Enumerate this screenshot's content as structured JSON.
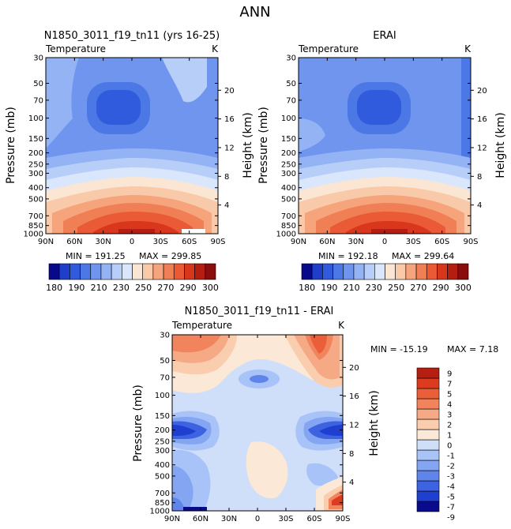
{
  "page_title": "ANN",
  "colors": {
    "t_scale": [
      "#08088a",
      "#1e3ecb",
      "#2f5bdc",
      "#4c78e6",
      "#6f95ef",
      "#93b3f5",
      "#b7cff8",
      "#d9e6fb",
      "#fbe6d4",
      "#f9caa9",
      "#f6a47c",
      "#f17f56",
      "#ea5a34",
      "#d9361e",
      "#b51d12",
      "#8a0c0c"
    ],
    "d_scale": [
      "#0a0a8c",
      "#1e3fcf",
      "#3e63e0",
      "#5f84ea",
      "#83a5f2",
      "#a8c3f7",
      "#cfdffa",
      "#fbe8d6",
      "#f9cdae",
      "#f6a985",
      "#f1845c",
      "#ea5f38",
      "#dc3b20",
      "#b71e12"
    ]
  },
  "chart_data": [
    {
      "type": "contour",
      "id": "model",
      "title": "N1850_3011_f19_tn11 (yrs 16-25)",
      "variable": "Temperature",
      "units": "K",
      "ylabel": "Pressure (mb)",
      "y2label": "Height (km)",
      "x_ticks": [
        "90N",
        "60N",
        "30N",
        "0",
        "30S",
        "60S",
        "90S"
      ],
      "y_ticks": [
        "30",
        "50",
        "70",
        "100",
        "150",
        "200",
        "250",
        "300",
        "400",
        "500",
        "700",
        "850",
        "1000"
      ],
      "y2_ticks": [
        "4",
        "8",
        "12",
        "16",
        "20"
      ],
      "min_label": "MIN = 191.25",
      "max_label": "MAX = 299.85",
      "min": 191.25,
      "max": 299.85
    },
    {
      "type": "contour",
      "id": "obs",
      "title": "ERAI",
      "variable": "Temperature",
      "units": "K",
      "ylabel": "Pressure (mb)",
      "y2label": "Height (km)",
      "x_ticks": [
        "90N",
        "60N",
        "30N",
        "0",
        "30S",
        "60S",
        "90S"
      ],
      "y_ticks": [
        "30",
        "50",
        "70",
        "100",
        "150",
        "200",
        "250",
        "300",
        "400",
        "500",
        "700",
        "850",
        "1000"
      ],
      "y2_ticks": [
        "4",
        "8",
        "12",
        "16",
        "20"
      ],
      "min_label": "MIN = 192.18",
      "max_label": "MAX = 299.64",
      "min": 192.18,
      "max": 299.64
    },
    {
      "type": "contour",
      "id": "diff",
      "title": "N1850_3011_f19_tn11 - ERAI",
      "variable": "Temperature",
      "units": "K",
      "ylabel": "Pressure (mb)",
      "y2label": "Height (km)",
      "x_ticks": [
        "90N",
        "60N",
        "30N",
        "0",
        "30S",
        "60S",
        "90S"
      ],
      "y_ticks": [
        "30",
        "50",
        "70",
        "100",
        "150",
        "200",
        "250",
        "300",
        "400",
        "500",
        "700",
        "850",
        "1000"
      ],
      "y2_ticks": [
        "4",
        "8",
        "12",
        "16",
        "20"
      ],
      "min_label": "MIN = -15.19",
      "max_label": "MAX =    7.18",
      "min": -15.19,
      "max": 7.18
    }
  ],
  "colorbar_temp": {
    "labels": [
      "180",
      "190",
      "210",
      "230",
      "250",
      "270",
      "290",
      "300"
    ]
  },
  "colorbar_diff": {
    "labels": [
      "9",
      "7",
      "5",
      "4",
      "3",
      "2",
      "1",
      "0",
      "-1",
      "-2",
      "-3",
      "-4",
      "-5",
      "-7",
      "-9"
    ]
  }
}
